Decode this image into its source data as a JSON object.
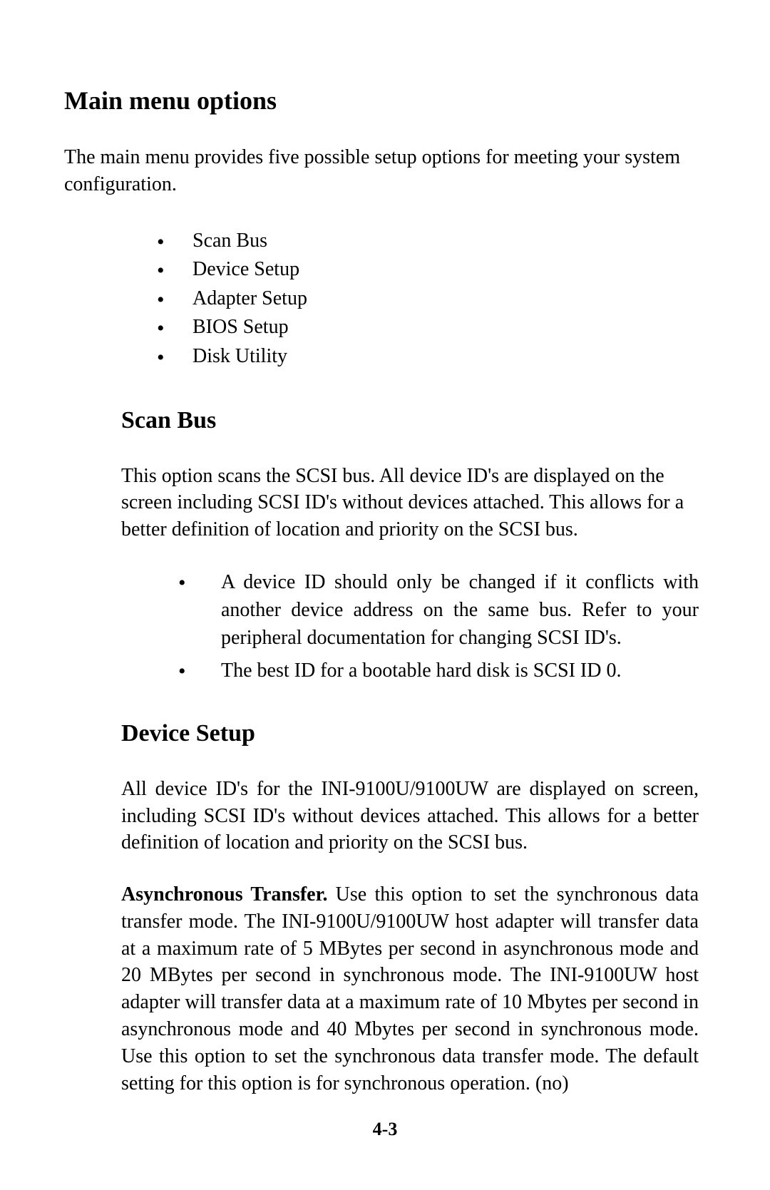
{
  "page": {
    "heading_main": "Main menu options",
    "intro": "The main menu provides five possible setup options for meeting your system configuration.",
    "menu_items": {
      "i0": "Scan Bus",
      "i1": "Device Setup",
      "i2": "Adapter Setup",
      "i3": "BIOS Setup",
      "i4": "Disk Utility"
    },
    "scanbus": {
      "heading": "Scan Bus",
      "para": "This option scans the SCSI bus.  All device ID's are displayed on the screen including SCSI ID's without devices attached.  This allows for a better definition of location and priority on the SCSI bus.",
      "bullets": {
        "b0": "A device ID should only be changed if it conflicts with another device address on the same bus. Refer to your peripheral documentation for changing SCSI ID's.",
        "b1": "The best ID for a bootable hard disk is SCSI ID 0."
      }
    },
    "devicesetup": {
      "heading": "Device Setup",
      "para1": "All device ID's for the INI-9100U/9100UW are displayed on screen, including SCSI ID's without devices attached. This allows  for a better definition of location and priority on the SCSI bus.",
      "async_label": "Asynchronous Transfer.",
      "async_text": "  Use this option to set the synchronous data transfer mode. The INI-9100U/9100UW host adapter will transfer data at a maximum rate of 5 MBytes per second in asynchronous mode and 20 MBytes per second in synchronous mode.  The INI-9100UW host adapter will transfer data at a maximum rate of 10 Mbytes per second in asynchronous mode and 40 Mbytes per second in synchronous mode.  Use this option to set the synchronous data transfer mode.  The default setting for this option is for synchronous operation. (no)"
    },
    "page_number": "4-3"
  }
}
